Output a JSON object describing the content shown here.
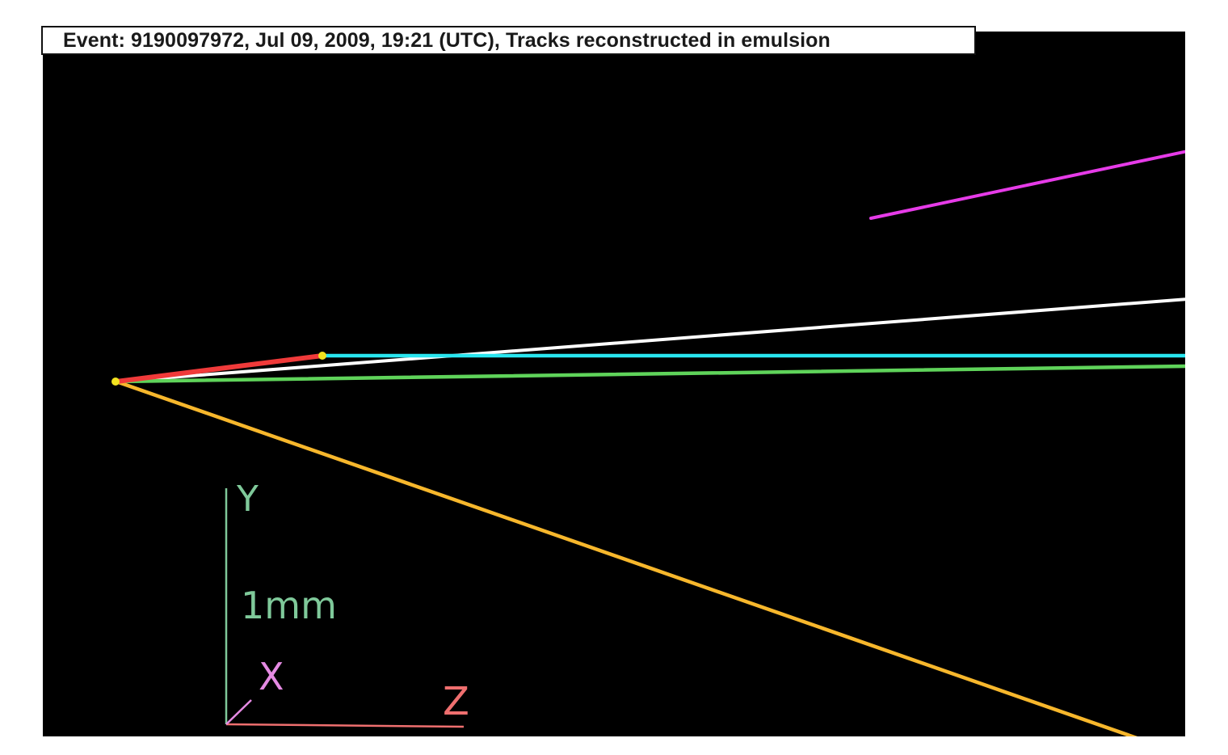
{
  "title": "Event: 9190097972, Jul 09, 2009, 19:21 (UTC), Tracks reconstructed in emulsion",
  "colors": {
    "background": "#000000",
    "track_white": "#ffffff",
    "track_cyan": "#29e6f0",
    "track_green": "#5fd35a",
    "track_orange": "#f7b72c",
    "track_magenta": "#e63be8",
    "track_red": "#f03a3a",
    "vertex": "#f2e21f",
    "axis_y": "#7fc99a",
    "axis_x": "#e58ae3",
    "axis_z": "#ef6f6f"
  },
  "tracks": [
    {
      "name": "primary-white-track",
      "color_key": "track_white"
    },
    {
      "name": "cyan-track",
      "color_key": "track_cyan"
    },
    {
      "name": "green-track",
      "color_key": "track_green"
    },
    {
      "name": "orange-track",
      "color_key": "track_orange"
    },
    {
      "name": "magenta-track",
      "color_key": "track_magenta"
    },
    {
      "name": "red-short-track",
      "color_key": "track_red"
    }
  ],
  "axes": {
    "y_label": "Y",
    "x_label": "X",
    "z_label": "Z",
    "scale_label": "1mm"
  }
}
